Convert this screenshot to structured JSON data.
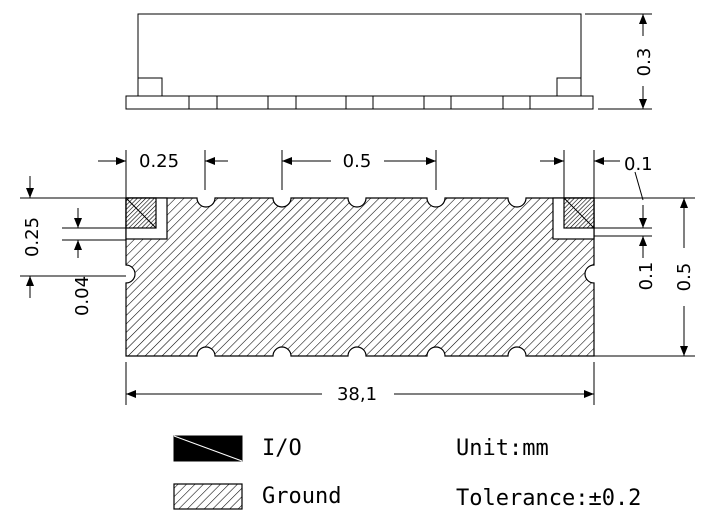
{
  "dimensions": {
    "height_side": "0.3",
    "pad_width": "0.25",
    "pitch": "0.5",
    "right_gap": "0.1",
    "left_pad_height": "0.25",
    "left_small_gap": "0.04",
    "right_small_gap": "0.1",
    "body_height": "0.5",
    "total_length": "38,1"
  },
  "legend": {
    "io_label": "I/O",
    "ground_label": "Ground",
    "unit": "Unit:mm",
    "tolerance": "Tolerance:±0.2"
  },
  "colors": {
    "line": "#000000",
    "io_fill": "#000000",
    "background": "#ffffff"
  }
}
